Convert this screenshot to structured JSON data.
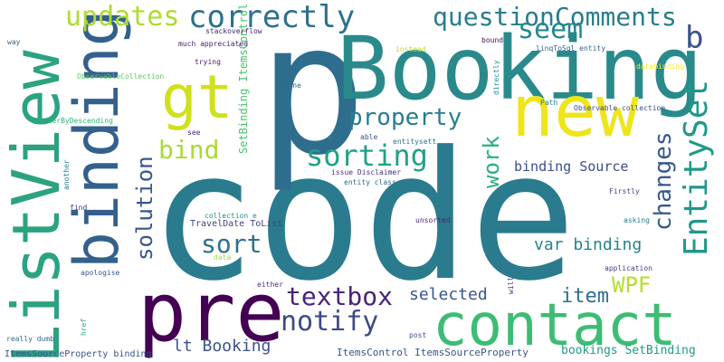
{
  "words": [
    {
      "text": "code",
      "color": "#2a7b8e"
    },
    {
      "text": "p",
      "color": "#2e6d8e"
    },
    {
      "text": "Booking",
      "color": "#2a8a8b"
    },
    {
      "text": "binding",
      "color": "#33608d"
    },
    {
      "text": "ListView",
      "color": "#2ca281"
    },
    {
      "text": "pre",
      "color": "#440154"
    },
    {
      "text": "contact",
      "color": "#3dbc74"
    },
    {
      "text": "new",
      "color": "#eee51b"
    },
    {
      "text": "gt",
      "color": "#d0e11c"
    },
    {
      "text": "correctly",
      "color": "#2d708e"
    },
    {
      "text": "updates",
      "color": "#addc30"
    },
    {
      "text": "questionComments",
      "color": "#287c8e"
    },
    {
      "text": "seem",
      "color": "#23888e"
    },
    {
      "text": "b",
      "color": "#3b518b"
    },
    {
      "text": "EntitySet",
      "color": "#1f988b"
    },
    {
      "text": "property",
      "color": "#287d8e"
    },
    {
      "text": "sorting",
      "color": "#1fa187"
    },
    {
      "text": "bind",
      "color": "#a8db34"
    },
    {
      "text": "changes",
      "color": "#38588c"
    },
    {
      "text": "work",
      "color": "#29af7f"
    },
    {
      "text": "solution",
      "color": "#39568c"
    },
    {
      "text": "sort",
      "color": "#2c718e"
    },
    {
      "text": "textbox",
      "color": "#482576"
    },
    {
      "text": "notify",
      "color": "#3e4989"
    },
    {
      "text": "WPF",
      "color": "#b5de2b"
    },
    {
      "text": "item",
      "color": "#2e6e8e"
    },
    {
      "text": "selected",
      "color": "#39558c"
    },
    {
      "text": "var binding",
      "color": "#26828e"
    },
    {
      "text": "lt Booking",
      "color": "#3b528b"
    },
    {
      "text": "binding Source",
      "color": "#3e4c8a"
    },
    {
      "text": "bookings SetBinding",
      "color": "#1f9a8a"
    },
    {
      "text": "ItemsControl ItemsSourceProperty",
      "color": "#3b528b"
    },
    {
      "text": "ItemsSourceProperty binding",
      "color": "#3a548c"
    },
    {
      "text": "SetBinding ItemsControl",
      "color": "#4ac16d"
    },
    {
      "text": "TravelDate ToList",
      "color": "#424086"
    },
    {
      "text": "ObservableCollection",
      "color": "#5ec962"
    },
    {
      "text": "OrderByDescending",
      "color": "#2db27d"
    },
    {
      "text": "stackoverflow",
      "color": "#482374"
    },
    {
      "text": "much appreciated",
      "color": "#481a6c"
    },
    {
      "text": "linqToSql entity",
      "color": "#355f8d"
    },
    {
      "text": "databinding",
      "color": "#fde725"
    },
    {
      "text": "Observable collection",
      "color": "#3e4a89"
    },
    {
      "text": "entity class",
      "color": "#31688e"
    },
    {
      "text": "entitysett",
      "color": "#2b758e"
    },
    {
      "text": "issue Disclaimer",
      "color": "#472e7c"
    },
    {
      "text": "collection e",
      "color": "#21918c"
    },
    {
      "text": "application",
      "color": "#433e85"
    },
    {
      "text": "Firstly",
      "color": "#3f4788"
    },
    {
      "text": "asking",
      "color": "#287c8e"
    },
    {
      "text": "unsorted",
      "color": "#482878"
    },
    {
      "text": "apologise",
      "color": "#3c508b"
    },
    {
      "text": "really dumb",
      "color": "#306a8e"
    },
    {
      "text": "either",
      "color": "#46327e"
    },
    {
      "text": "anyone",
      "color": "#2f6c8e"
    },
    {
      "text": "trying",
      "color": "#481b6d"
    },
    {
      "text": "instead",
      "color": "#b8de29"
    },
    {
      "text": "bound",
      "color": "#470e61"
    },
    {
      "text": "directly",
      "color": "#228c8d"
    },
    {
      "text": "Path",
      "color": "#26818e"
    },
    {
      "text": "way",
      "color": "#31678e"
    },
    {
      "text": "data",
      "color": "#9bd93c"
    },
    {
      "text": "href",
      "color": "#29af7f"
    },
    {
      "text": "post",
      "color": "#3b518b"
    },
    {
      "text": "will",
      "color": "#472a7a"
    },
    {
      "text": "find",
      "color": "#472d7b"
    },
    {
      "text": "another",
      "color": "#277f8e"
    },
    {
      "text": "see",
      "color": "#482071"
    },
    {
      "text": "able",
      "color": "#3b528b"
    },
    {
      "text": "e g",
      "color": "#26828e"
    }
  ]
}
